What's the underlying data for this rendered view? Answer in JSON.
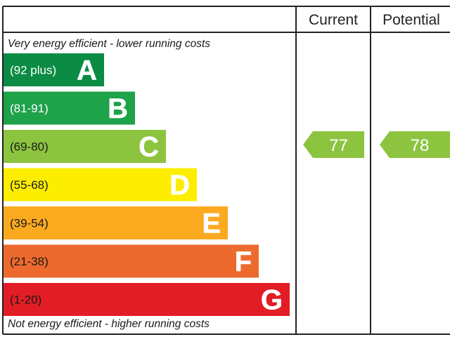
{
  "headers": {
    "current": "Current",
    "potential": "Potential"
  },
  "notes": {
    "top": "Very energy efficient - lower running costs",
    "bottom": "Not energy efficient - higher running costs"
  },
  "chart_data": {
    "type": "bar",
    "categories": [
      "A",
      "B",
      "C",
      "D",
      "E",
      "F",
      "G"
    ],
    "bands": [
      {
        "letter": "A",
        "range": "(92 plus)",
        "color": "#0b8b44",
        "text_color": "#ffffff"
      },
      {
        "letter": "B",
        "range": "(81-91)",
        "color": "#1ea24a",
        "text_color": "#ffffff"
      },
      {
        "letter": "C",
        "range": "(69-80)",
        "color": "#8cc43f",
        "text_color": "#1a1a1a"
      },
      {
        "letter": "D",
        "range": "(55-68)",
        "color": "#fdee00",
        "text_color": "#1a1a1a"
      },
      {
        "letter": "E",
        "range": "(39-54)",
        "color": "#fbaa20",
        "text_color": "#1a1a1a"
      },
      {
        "letter": "F",
        "range": "(21-38)",
        "color": "#ed6a2e",
        "text_color": "#1a1a1a"
      },
      {
        "letter": "G",
        "range": "(1-20)",
        "color": "#e31d25",
        "text_color": "#1a1a1a"
      }
    ],
    "current": {
      "value": 77,
      "band": "C",
      "color": "#8cc43f"
    },
    "potential": {
      "value": 78,
      "band": "C",
      "color": "#8cc43f"
    }
  }
}
